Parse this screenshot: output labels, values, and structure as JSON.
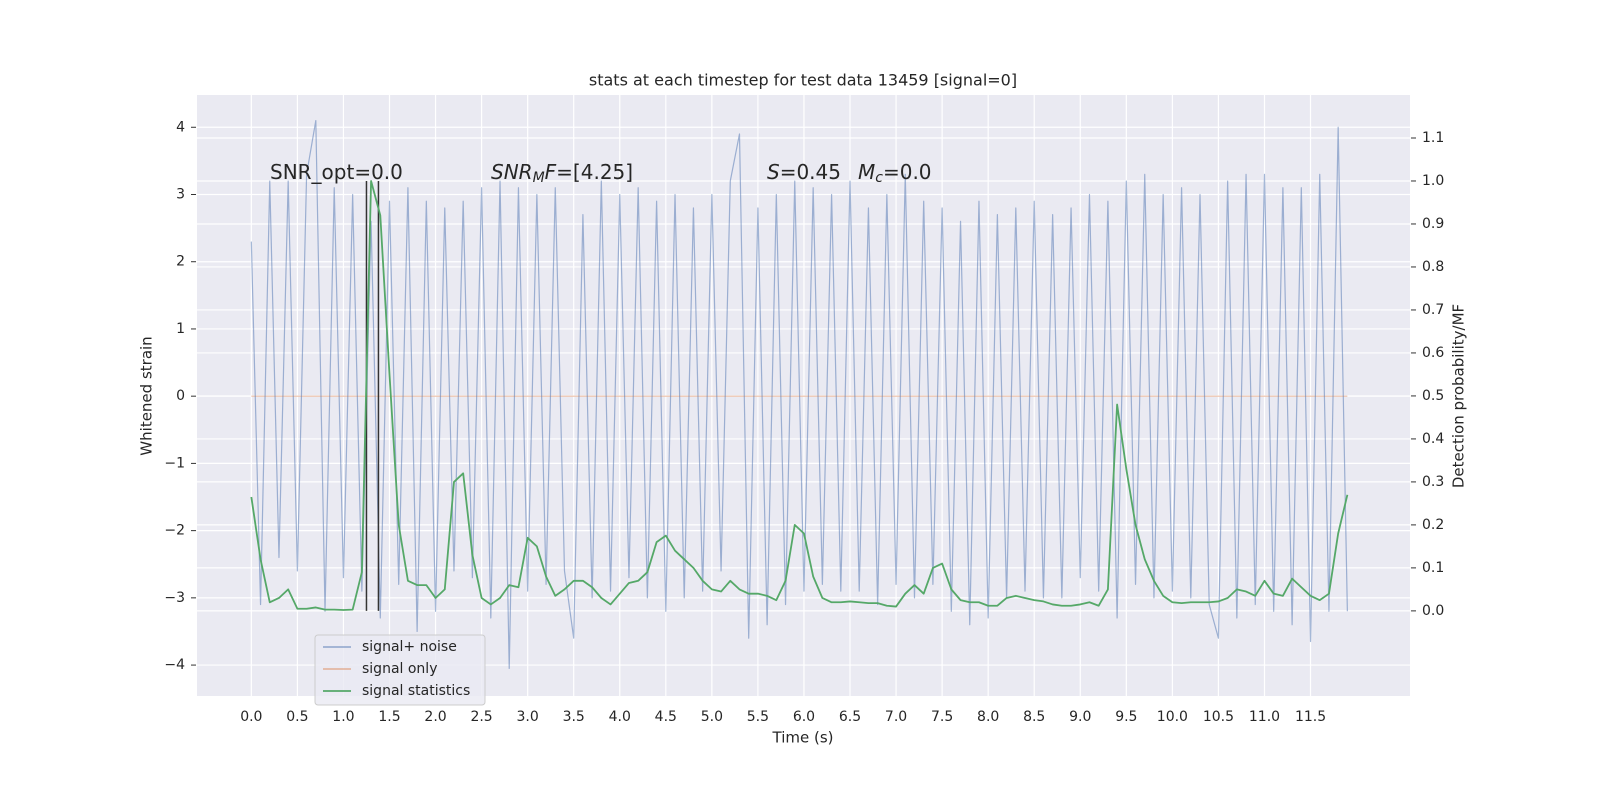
{
  "chart_data": {
    "type": "line",
    "title": "stats at each timestep for test data 13459 [signal=0]",
    "xlabel": "Time (s)",
    "ylabel": "Whitened strain",
    "y2label": "Detection probability/MF",
    "xlim": [
      -0.59,
      12.58
    ],
    "ylim": [
      -4.46,
      4.48
    ],
    "y2lim": [
      -0.198,
      1.2
    ],
    "xticks": [
      {
        "value": 0,
        "label": "0.0"
      },
      0.5,
      {
        "value": 1,
        "label": "1.0"
      },
      1.5,
      {
        "value": 2,
        "label": "2.0"
      },
      2.5,
      {
        "value": 3,
        "label": "3.0"
      },
      3.5,
      {
        "value": 4,
        "label": "4.0"
      },
      4.5,
      {
        "value": 5,
        "label": "5.0"
      },
      5.5,
      {
        "value": 6,
        "label": "6.0"
      },
      6.5,
      {
        "value": 7,
        "label": "7.0"
      },
      7.5,
      {
        "value": 8,
        "label": "8.0"
      },
      8.5,
      {
        "value": 9,
        "label": "9.0"
      },
      9.5,
      {
        "value": 10,
        "label": "10.0"
      },
      10.5,
      {
        "value": 11,
        "label": "11.0"
      },
      11.5
    ],
    "yticks": [
      {
        "value": -4,
        "label": "−4"
      },
      {
        "value": -3,
        "label": "−3"
      },
      {
        "value": -2,
        "label": "−2"
      },
      {
        "value": -1,
        "label": "−1"
      },
      0,
      1,
      2,
      3,
      4
    ],
    "y2ticks": [
      {
        "value": 0,
        "label": "0.0"
      },
      0.1,
      0.2,
      0.3,
      0.4,
      0.5,
      0.6,
      0.7,
      0.8,
      0.9,
      {
        "value": 1,
        "label": "1.0"
      },
      1.1
    ],
    "grid": true,
    "x": [
      0.0,
      0.1,
      0.2,
      0.3,
      0.4,
      0.5,
      0.6,
      0.7,
      0.8,
      0.9,
      1.0,
      1.1,
      1.2,
      1.3,
      1.4,
      1.5,
      1.6,
      1.7,
      1.8,
      1.9,
      2.0,
      2.1,
      2.2,
      2.3,
      2.4,
      2.5,
      2.6,
      2.7,
      2.8,
      2.9,
      3.0,
      3.1,
      3.2,
      3.3,
      3.4,
      3.5,
      3.6,
      3.7,
      3.8,
      3.9,
      4.0,
      4.1,
      4.2,
      4.3,
      4.4,
      4.5,
      4.6,
      4.7,
      4.8,
      4.9,
      5.0,
      5.1,
      5.2,
      5.3,
      5.4,
      5.5,
      5.6,
      5.7,
      5.8,
      5.9,
      6.0,
      6.1,
      6.2,
      6.3,
      6.4,
      6.5,
      6.6,
      6.7,
      6.8,
      6.9,
      7.0,
      7.1,
      7.2,
      7.3,
      7.4,
      7.5,
      7.6,
      7.7,
      7.8,
      7.9,
      8.0,
      8.1,
      8.2,
      8.3,
      8.4,
      8.5,
      8.6,
      8.7,
      8.8,
      8.9,
      9.0,
      9.1,
      9.2,
      9.3,
      9.4,
      9.5,
      9.6,
      9.7,
      9.8,
      9.9,
      10.0,
      10.1,
      10.2,
      10.3,
      10.4,
      10.5,
      10.6,
      10.7,
      10.8,
      10.9,
      11.0,
      11.1,
      11.2,
      11.3,
      11.4,
      11.5,
      11.6,
      11.7,
      11.8,
      11.9
    ],
    "series": [
      {
        "name": "signal+ noise",
        "color": "#4c72b0",
        "opacity": 0.5,
        "values": [
          2.3,
          -3.1,
          3.2,
          -2.4,
          3.2,
          -2.6,
          3.3,
          4.1,
          -3.2,
          3.1,
          -2.7,
          3.0,
          -2.9,
          2.6,
          -3.3,
          2.9,
          -2.8,
          3.1,
          -3.5,
          2.9,
          -3.2,
          2.8,
          -2.6,
          2.9,
          -2.7,
          3.1,
          -3.3,
          3.2,
          -4.05,
          3.1,
          -2.9,
          3.0,
          -2.8,
          3.1,
          -2.6,
          -3.6,
          2.7,
          -3.0,
          3.2,
          -2.9,
          3.0,
          -2.7,
          3.1,
          -3.0,
          2.9,
          -3.2,
          3.0,
          -3.0,
          2.8,
          -2.9,
          3.0,
          -2.6,
          3.2,
          3.9,
          -3.6,
          2.8,
          -3.4,
          3.0,
          -3.1,
          3.2,
          -2.9,
          3.1,
          -2.8,
          3.0,
          -2.9,
          3.2,
          -2.9,
          2.8,
          -3.1,
          3.0,
          -2.8,
          3.3,
          -3.0,
          2.9,
          -2.8,
          2.8,
          -3.2,
          2.6,
          -3.4,
          2.9,
          -3.3,
          2.7,
          -3.0,
          2.8,
          -2.9,
          2.9,
          -3.0,
          2.7,
          -3.0,
          2.8,
          -2.7,
          3.0,
          -2.9,
          2.9,
          -3.3,
          3.2,
          -2.8,
          3.3,
          -3.0,
          3.0,
          -2.9,
          3.1,
          -3.0,
          3.0,
          -3.1,
          -3.6,
          3.2,
          -3.3,
          3.3,
          -3.1,
          3.3,
          -3.2,
          3.1,
          -3.4,
          3.1,
          -3.65,
          3.3,
          -3.2,
          4.0,
          -3.2
        ]
      },
      {
        "name": "signal only",
        "color": "#dd8452",
        "opacity": 0.5,
        "values": [
          0,
          0,
          0,
          0,
          0,
          0,
          0,
          0,
          0,
          0,
          0,
          0,
          0,
          0,
          0,
          0,
          0,
          0,
          0,
          0,
          0,
          0,
          0,
          0,
          0,
          0,
          0,
          0,
          0,
          0,
          0,
          0,
          0,
          0,
          0,
          0,
          0,
          0,
          0,
          0,
          0,
          0,
          0,
          0,
          0,
          0,
          0,
          0,
          0,
          0,
          0,
          0,
          0,
          0,
          0,
          0,
          0,
          0,
          0,
          0,
          0,
          0,
          0,
          0,
          0,
          0,
          0,
          0,
          0,
          0,
          0,
          0,
          0,
          0,
          0,
          0,
          0,
          0,
          0,
          0,
          0,
          0,
          0,
          0,
          0,
          0,
          0,
          0,
          0,
          0,
          0,
          0,
          0,
          0,
          0,
          0,
          0,
          0,
          0,
          0,
          0,
          0,
          0,
          0,
          0,
          0,
          0,
          0,
          0,
          0,
          0,
          0,
          0,
          0,
          0,
          0,
          0,
          0,
          0,
          0
        ]
      },
      {
        "name": "signal statistics",
        "color": "#55a868",
        "opacity": 1,
        "axis": "y2",
        "values": [
          0.265,
          0.12,
          0.02,
          0.03,
          0.05,
          0.005,
          0.005,
          0.008,
          0.003,
          0.003,
          0.002,
          0.003,
          0.09,
          1.0,
          0.92,
          0.55,
          0.2,
          0.07,
          0.06,
          0.06,
          0.03,
          0.05,
          0.3,
          0.32,
          0.13,
          0.03,
          0.015,
          0.03,
          0.06,
          0.055,
          0.17,
          0.15,
          0.08,
          0.035,
          0.05,
          0.07,
          0.07,
          0.055,
          0.03,
          0.015,
          0.04,
          0.065,
          0.07,
          0.09,
          0.16,
          0.175,
          0.14,
          0.12,
          0.1,
          0.07,
          0.05,
          0.045,
          0.07,
          0.05,
          0.04,
          0.04,
          0.035,
          0.025,
          0.07,
          0.2,
          0.18,
          0.08,
          0.03,
          0.02,
          0.02,
          0.022,
          0.02,
          0.018,
          0.018,
          0.012,
          0.01,
          0.04,
          0.06,
          0.04,
          0.1,
          0.11,
          0.05,
          0.025,
          0.02,
          0.02,
          0.012,
          0.012,
          0.03,
          0.035,
          0.03,
          0.025,
          0.022,
          0.015,
          0.012,
          0.012,
          0.015,
          0.02,
          0.012,
          0.05,
          0.48,
          0.33,
          0.2,
          0.12,
          0.07,
          0.035,
          0.02,
          0.018,
          0.02,
          0.02,
          0.02,
          0.022,
          0.03,
          0.05,
          0.045,
          0.035,
          0.07,
          0.04,
          0.035,
          0.075,
          0.055,
          0.035,
          0.025,
          0.04,
          0.18,
          0.27
        ]
      }
    ],
    "vlines": {
      "x": [
        1.25,
        1.38
      ],
      "y2range": [
        0,
        1
      ],
      "color": "#333333"
    },
    "annotations": [
      {
        "parts": [
          {
            "text": "SNR_opt=0.0",
            "style": "normal"
          }
        ]
      },
      {
        "parts": [
          {
            "text": "SNR",
            "style": "italic"
          },
          {
            "text": "M",
            "style": "italic-sub"
          },
          {
            "text": "F",
            "style": "italic"
          },
          {
            "text": "=[4.25]",
            "style": "normal"
          }
        ]
      },
      {
        "parts": [
          {
            "text": "S",
            "style": "italic"
          },
          {
            "text": "=0.45",
            "style": "normal"
          }
        ]
      },
      {
        "parts": [
          {
            "text": "M",
            "style": "italic"
          },
          {
            "text": "c",
            "style": "italic-sub"
          },
          {
            "text": "=0.0",
            "style": "normal"
          }
        ]
      }
    ]
  }
}
